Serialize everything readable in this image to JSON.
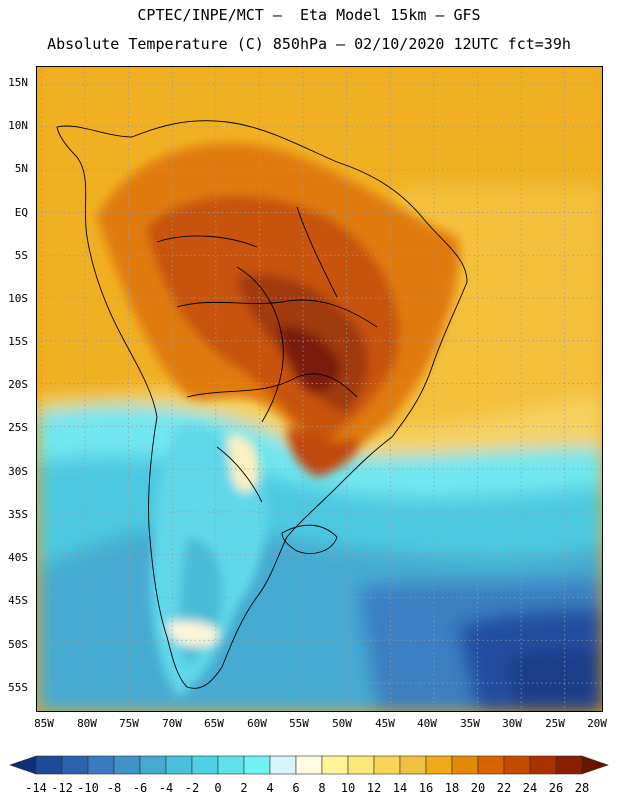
{
  "header": {
    "line1": "CPTEC/INPE/MCT –  Eta Model 15km – GFS",
    "line2": "Absolute Temperature (C) 850hPa – 02/10/2020 12UTC fct=39h"
  },
  "map": {
    "region": "South America",
    "variable": "Absolute Temperature (C) 850hPa",
    "lat_labels": [
      "15N",
      "10N",
      "5N",
      "EQ",
      "5S",
      "10S",
      "15S",
      "20S",
      "25S",
      "30S",
      "35S",
      "40S",
      "45S",
      "50S",
      "55S"
    ],
    "lat_values": [
      15,
      10,
      5,
      0,
      -5,
      -10,
      -15,
      -20,
      -25,
      -30,
      -35,
      -40,
      -45,
      -50,
      -55
    ],
    "lon_labels": [
      "85W",
      "80W",
      "75W",
      "70W",
      "65W",
      "60W",
      "55W",
      "50W",
      "45W",
      "40W",
      "35W",
      "30W",
      "25W",
      "20W"
    ],
    "lon_values": [
      -85,
      -80,
      -75,
      -70,
      -65,
      -60,
      -55,
      -50,
      -45,
      -40,
      -35,
      -30,
      -25,
      -20
    ],
    "lon_range": [
      -85.5,
      -20.5
    ],
    "lat_range": [
      -58.5,
      17
    ]
  },
  "colorbar": {
    "labels": [
      "-14",
      "-12",
      "-10",
      "-8",
      "-6",
      "-4",
      "-2",
      "0",
      "2",
      "4",
      "6",
      "8",
      "10",
      "12",
      "14",
      "16",
      "18",
      "20",
      "22",
      "24",
      "26",
      "28"
    ],
    "colors": [
      "#0d2e78",
      "#1e4a9a",
      "#2d62b0",
      "#3a7ac0",
      "#3f93c8",
      "#44aad2",
      "#4ac0dc",
      "#50d0e4",
      "#60e2ec",
      "#70f2f4",
      "#d4f6fa",
      "#fffbe0",
      "#fff49a",
      "#fde67a",
      "#f8d458",
      "#f2c040",
      "#f0aa18",
      "#e48808",
      "#d86400",
      "#c44a00",
      "#a83200",
      "#882000",
      "#6a1400"
    ]
  }
}
